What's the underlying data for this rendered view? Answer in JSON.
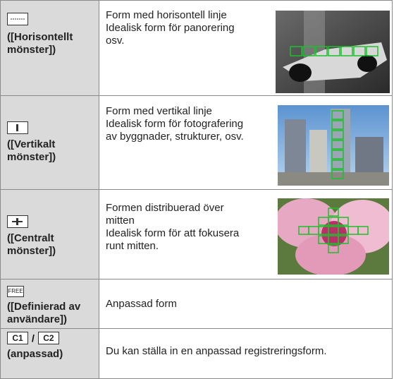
{
  "rows": [
    {
      "label": "([Horisontellt mönster])",
      "description": [
        "Form med horisontell linje",
        "Idealisk form för panorering osv."
      ]
    },
    {
      "label": "([Vertikalt mönster])",
      "description": [
        "Form med vertikal linje",
        "Idealisk form för fotografering av byggnader, strukturer, osv."
      ]
    },
    {
      "label": "([Centralt mönster])",
      "description": [
        "Formen distribuerad över mitten",
        "Idealisk form för att fokusera runt mitten."
      ]
    },
    {
      "icon": "FREE",
      "label": "([Definierad av användare])",
      "description": [
        "Anpassad form"
      ]
    },
    {
      "icons": [
        "C1",
        "/",
        "C2"
      ],
      "label": "(anpassad)",
      "description": [
        "Du kan ställa in en anpassad registreringsform."
      ]
    }
  ]
}
